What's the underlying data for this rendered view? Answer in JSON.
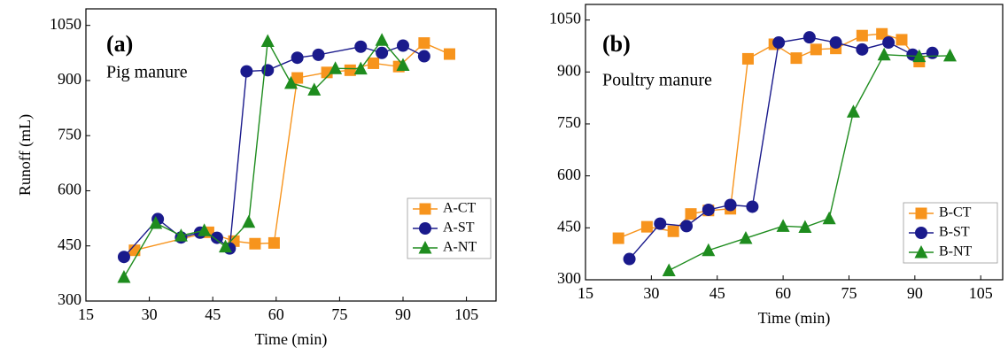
{
  "chart_data": [
    {
      "type": "line",
      "panel_label": "(a)",
      "annotation": "Pig manure",
      "xlabel": "Time (min)",
      "ylabel": "Runoff (mL)",
      "xlim": [
        15,
        112
      ],
      "ylim": [
        300,
        1095
      ],
      "xticks": [
        15,
        30,
        45,
        60,
        75,
        90,
        105
      ],
      "yticks": [
        300,
        450,
        600,
        750,
        900,
        1050
      ],
      "legend": "lower right",
      "series": [
        {
          "name": "A-CT",
          "color": "#f7941d",
          "marker": "square",
          "x": [
            26.5,
            44,
            50,
            55,
            59.5,
            65,
            72,
            77.5,
            83,
            89,
            95,
            101
          ],
          "values": [
            438,
            487,
            463,
            456,
            458,
            907,
            922,
            928,
            947,
            938,
            1002,
            972
          ]
        },
        {
          "name": "A-ST",
          "color": "#1a1a8c",
          "marker": "circle",
          "x": [
            24,
            32,
            37.5,
            42,
            46,
            49,
            53,
            58,
            65,
            70,
            80,
            85,
            90,
            95
          ],
          "values": [
            420,
            523,
            473,
            486,
            472,
            443,
            925,
            928,
            962,
            970,
            992,
            975,
            995,
            966
          ]
        },
        {
          "name": "A-NT",
          "color": "#1e8c1e",
          "marker": "triangle",
          "x": [
            24,
            31.5,
            37.5,
            43,
            48,
            53.5,
            58,
            63.5,
            69,
            74,
            80,
            85,
            90
          ],
          "values": [
            365,
            512,
            478,
            492,
            448,
            515,
            1007,
            893,
            875,
            933,
            932,
            1010,
            942
          ]
        }
      ]
    },
    {
      "type": "line",
      "panel_label": "(b)",
      "annotation": "Poultry manure",
      "xlabel": "Time (min)",
      "xlim": [
        15,
        110
      ],
      "ylim": [
        300,
        1095
      ],
      "xticks": [
        15,
        30,
        45,
        60,
        75,
        90,
        105
      ],
      "yticks": [
        300,
        450,
        600,
        750,
        900,
        1050
      ],
      "legend": "lower right",
      "series": [
        {
          "name": "B-CT",
          "color": "#f7941d",
          "marker": "square",
          "x": [
            22.5,
            29,
            35,
            39,
            43,
            48,
            52,
            58,
            63,
            67.5,
            72,
            78,
            82.5,
            87,
            91
          ],
          "values": [
            420,
            453,
            440,
            490,
            500,
            505,
            938,
            980,
            940,
            965,
            968,
            1005,
            1010,
            993,
            930
          ]
        },
        {
          "name": "B-ST",
          "color": "#1a1a8c",
          "marker": "circle",
          "x": [
            25,
            32,
            38,
            43,
            48,
            53,
            59,
            66,
            72,
            78,
            84,
            89.5,
            94
          ],
          "values": [
            360,
            462,
            455,
            502,
            516,
            511,
            985,
            1000,
            985,
            965,
            985,
            950,
            955
          ]
        },
        {
          "name": "B-NT",
          "color": "#1e8c1e",
          "marker": "triangle",
          "x": [
            34,
            43,
            51.5,
            60,
            65,
            70.5,
            76,
            83,
            91,
            98
          ],
          "values": [
            327,
            385,
            420,
            455,
            452,
            477,
            785,
            950,
            945,
            947
          ]
        }
      ]
    }
  ]
}
